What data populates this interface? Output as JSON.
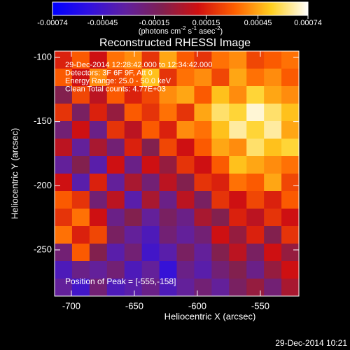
{
  "chart_data": {
    "type": "heatmap",
    "title": "Reconstructed RHESSI Image",
    "xlabel": "Heliocentric X (arcsec)",
    "ylabel": "Heliocentric Y (arcsec)",
    "xlim": [
      -713.3,
      -519.4
    ],
    "ylim": [
      -286,
      -95.1
    ],
    "xticks": [
      -700,
      -650,
      -600,
      -550
    ],
    "yticks": [
      -100,
      -150,
      -200,
      -250
    ],
    "annotations": [
      "29-Dec-2014 12:28:42.000 to 12:34:42.000",
      "Detectors: 3F 6F 9F, Att 0",
      "Energy Range: 25.0 - 50.0 keV",
      "Clean    Total counts: 4.77E+03"
    ],
    "peak_label": "Position of Peak = [-555,-158]",
    "footer": "29-Dec-2014 10:21",
    "colorbar": {
      "lim": [
        -0.00074,
        0.00074
      ],
      "ticks": [
        -0.00074,
        -0.00045,
        -0.00015,
        0.00015,
        0.00045,
        0.00074
      ],
      "unit_parts": [
        "(photons cm",
        "-2",
        " s",
        "-1",
        " asec",
        "-2",
        ")"
      ],
      "colors": [
        "#0000ff",
        "#3010e0",
        "#6020a0",
        "#802050",
        "#d01010",
        "#ff6000",
        "#ffd020",
        "#ffffff"
      ]
    },
    "z": [
      [
        0.00015,
        0.0003,
        0.0001,
        0.00035,
        0.0004,
        0.0002,
        0.00045,
        0.0003,
        0.0002,
        0.00035,
        0.0004,
        0.00025,
        0.0003,
        0.00035
      ],
      [
        0.0003,
        0.0001,
        0.0004,
        0.00025,
        0.0003,
        0.0005,
        0.0002,
        0.00035,
        0.0004,
        0.00025,
        0.00045,
        0.00035,
        0.0004,
        0.0003
      ],
      [
        -0.0001,
        0.00025,
        5e-05,
        0.0003,
        0.00015,
        0.00025,
        0.0004,
        0.00045,
        0.0003,
        0.0005,
        0.0004,
        0.00055,
        0.00045,
        0.0004
      ],
      [
        0.0002,
        -0.00015,
        0.00015,
        -5e-05,
        0.0003,
        0.0002,
        0.00035,
        0.0002,
        0.00045,
        0.0006,
        0.00055,
        0.0007,
        0.0006,
        0.0005
      ],
      [
        -0.0002,
        0.0001,
        -0.00025,
        0.0002,
        5e-05,
        0.0003,
        0.00015,
        0.0004,
        0.00035,
        0.0005,
        0.00065,
        0.00055,
        0.00065,
        0.00045
      ],
      [
        5e-05,
        -0.0003,
        0,
        -0.0002,
        0.00015,
        -0.0001,
        0.00025,
        0.0001,
        0.0003,
        0.00045,
        0.0004,
        0.0006,
        0.0005,
        0.00055
      ],
      [
        -0.0003,
        -0.0001,
        -0.00035,
        0.0001,
        -0.00025,
        0.0001,
        -5e-05,
        0.0002,
        0.0001,
        0.0003,
        0.0005,
        0.00045,
        0.0004,
        0.00035
      ],
      [
        0.0001,
        -0.00035,
        0.00015,
        -0.0003,
        0,
        -0.0002,
        5e-05,
        -0.0001,
        0.0002,
        0.00015,
        0.00035,
        0.0003,
        0.00045,
        0.00025
      ],
      [
        0.0003,
        0.0002,
        -0.0002,
        5e-05,
        -0.00035,
        0,
        -0.00025,
        5e-05,
        -0.00015,
        0.0002,
        0.0001,
        0.00025,
        0.00015,
        0.0003
      ],
      [
        0.0002,
        0.00035,
        0.0001,
        -0.00025,
        -0.0001,
        -0.0003,
        -0.00015,
        -0.00025,
        0,
        -0.0001,
        0.00015,
        5e-05,
        0.0002,
        0.0001
      ],
      [
        0.00035,
        0.00015,
        0.00025,
        -0.00015,
        -0.0003,
        -0.0004,
        -0.0002,
        -0.0003,
        -0.0002,
        0.0001,
        -5e-05,
        0.00015,
        -0.0001,
        0.0002
      ],
      [
        -0.0002,
        0.0003,
        -0.0001,
        -0.00035,
        -0.0002,
        -0.00045,
        -0.00035,
        -0.00015,
        -0.0003,
        -0.0001,
        5e-05,
        -0.00015,
        0.0001,
        -5e-05
      ],
      [
        -0.0004,
        -0.00025,
        -0.0003,
        -0.0002,
        -0.0004,
        -0.0003,
        -0.0005,
        -0.00025,
        -0.00035,
        -0.0002,
        -0.0001,
        -0.00025,
        -5e-05,
        0.0001
      ],
      [
        -0.0003,
        -0.00045,
        -0.0002,
        -0.0004,
        -0.00035,
        -0.00025,
        -0.0004,
        -0.0003,
        -0.0002,
        -0.0003,
        -0.00015,
        -5e-05,
        -0.0002,
        0
      ]
    ]
  }
}
